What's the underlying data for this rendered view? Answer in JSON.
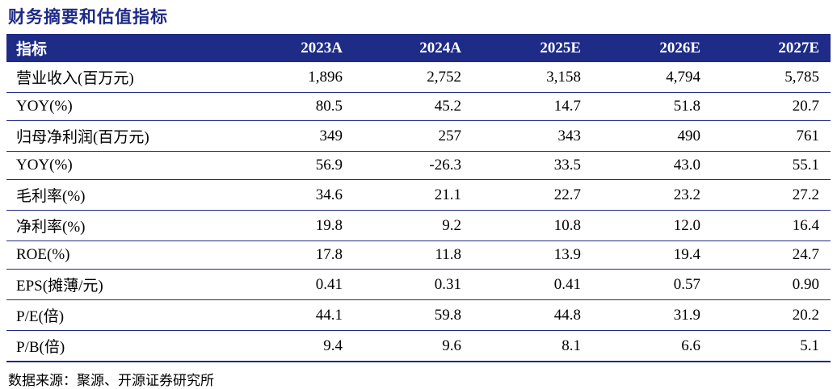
{
  "title": "财务摘要和估值指标",
  "source": "数据来源：聚源、开源证券研究所",
  "colors": {
    "header_bg": "#1e2b87",
    "header_text": "#ffffff",
    "title_text": "#1e2b87",
    "row_border": "#1e2b87",
    "body_text": "#000000"
  },
  "chart_data": {
    "type": "table",
    "title": "财务摘要和估值指标",
    "columns": [
      "指标",
      "2023A",
      "2024A",
      "2025E",
      "2026E",
      "2027E"
    ],
    "rows": [
      {
        "label": "营业收入(百万元)",
        "values": [
          "1,896",
          "2,752",
          "3,158",
          "4,794",
          "5,785"
        ]
      },
      {
        "label": "YOY(%)",
        "values": [
          "80.5",
          "45.2",
          "14.7",
          "51.8",
          "20.7"
        ]
      },
      {
        "label": "归母净利润(百万元)",
        "values": [
          "349",
          "257",
          "343",
          "490",
          "761"
        ]
      },
      {
        "label": "YOY(%)",
        "values": [
          "56.9",
          "-26.3",
          "33.5",
          "43.0",
          "55.1"
        ]
      },
      {
        "label": "毛利率(%)",
        "values": [
          "34.6",
          "21.1",
          "22.7",
          "23.2",
          "27.2"
        ]
      },
      {
        "label": "净利率(%)",
        "values": [
          "19.8",
          "9.2",
          "10.8",
          "12.0",
          "16.4"
        ]
      },
      {
        "label": "ROE(%)",
        "values": [
          "17.8",
          "11.8",
          "13.9",
          "19.4",
          "24.7"
        ]
      },
      {
        "label": "EPS(摊薄/元)",
        "values": [
          "0.41",
          "0.31",
          "0.41",
          "0.57",
          "0.90"
        ]
      },
      {
        "label": "P/E(倍)",
        "values": [
          "44.1",
          "59.8",
          "44.8",
          "31.9",
          "20.2"
        ]
      },
      {
        "label": "P/B(倍)",
        "values": [
          "9.4",
          "9.6",
          "8.1",
          "6.6",
          "5.1"
        ]
      }
    ]
  }
}
